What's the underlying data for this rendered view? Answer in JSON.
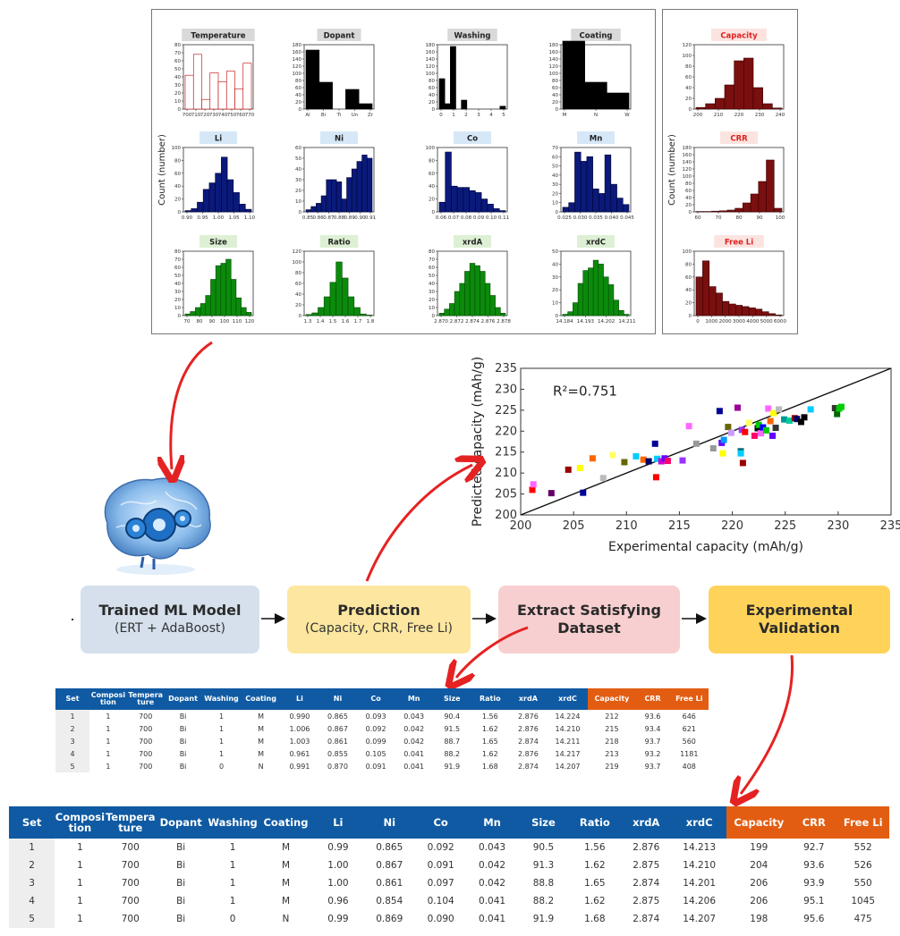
{
  "histograms": {
    "input_panel": [
      {
        "title": "Temperature",
        "label_bg": "#d9d9d9",
        "title_color": "#222222",
        "color": "#ffffff",
        "edge": "#c00000",
        "ymax": 80,
        "yticks": [
          0,
          10,
          20,
          30,
          40,
          50,
          60,
          70,
          80
        ],
        "ticks": [
          "700",
          "710",
          "720",
          "730",
          "740",
          "750",
          "760",
          "770"
        ],
        "values": [
          42,
          68,
          12,
          45,
          34,
          47,
          25,
          57
        ]
      },
      {
        "title": "Dopant",
        "label_bg": "#d9d9d9",
        "title_color": "#222222",
        "color": "#000000",
        "edge": "#000000",
        "ymax": 180,
        "yticks": [
          0,
          20,
          40,
          60,
          80,
          100,
          120,
          140,
          160,
          180
        ],
        "ticks": [
          "Al",
          "Bi",
          "Ti",
          "Un",
          "Zr"
        ],
        "values": [
          165,
          75,
          0,
          55,
          15
        ]
      },
      {
        "title": "Washing",
        "label_bg": "#d9d9d9",
        "title_color": "#222222",
        "color": "#000000",
        "edge": "#000000",
        "ymax": 180,
        "yticks": [
          0,
          20,
          40,
          60,
          80,
          100,
          120,
          140,
          160,
          180
        ],
        "ticks": [
          "0",
          "1",
          "2",
          "3",
          "4",
          "5"
        ],
        "values": [
          85,
          15,
          175,
          0,
          25,
          0,
          0,
          0,
          0,
          0,
          0,
          8
        ]
      },
      {
        "title": "Coating",
        "label_bg": "#d9d9d9",
        "title_color": "#222222",
        "color": "#000000",
        "edge": "#000000",
        "ymax": 180,
        "yticks": [
          0,
          20,
          40,
          60,
          80,
          100,
          120,
          140,
          160,
          180
        ],
        "ticks": [
          "M",
          "N",
          "W"
        ],
        "values": [
          190,
          75,
          45
        ]
      },
      {
        "title": "Li",
        "label_bg": "#d6e8f7",
        "title_color": "#222222",
        "color": "#0a1a7a",
        "edge": "#000033",
        "ymax": 100,
        "yticks": [
          0,
          20,
          40,
          60,
          80,
          100
        ],
        "ticks": [
          "0.90",
          "0.95",
          "1.00",
          "1.05",
          "1.10"
        ],
        "values": [
          2,
          5,
          15,
          35,
          45,
          60,
          85,
          50,
          30,
          12,
          4
        ]
      },
      {
        "title": "Ni",
        "label_bg": "#d6e8f7",
        "title_color": "#222222",
        "color": "#0a1a7a",
        "edge": "#000033",
        "ymax": 60,
        "yticks": [
          0,
          10,
          20,
          30,
          40,
          50,
          60
        ],
        "ticks": [
          "0.85",
          "0.86",
          "0.87",
          "0.88",
          "0.89",
          "0.90",
          "0.91"
        ],
        "values": [
          2,
          5,
          8,
          15,
          30,
          30,
          28,
          12,
          32,
          40,
          47,
          53,
          50
        ]
      },
      {
        "title": "Co",
        "label_bg": "#d6e8f7",
        "title_color": "#222222",
        "color": "#0a1a7a",
        "edge": "#000033",
        "ymax": 100,
        "yticks": [
          0,
          20,
          40,
          60,
          80,
          100
        ],
        "ticks": [
          "0.06",
          "0.07",
          "0.08",
          "0.09",
          "0.10",
          "0.11"
        ],
        "values": [
          15,
          93,
          40,
          38,
          38,
          33,
          30,
          20,
          12,
          5,
          2
        ]
      },
      {
        "title": "Mn",
        "label_bg": "#d6e8f7",
        "title_color": "#222222",
        "color": "#0a1a7a",
        "edge": "#000033",
        "ymax": 70,
        "yticks": [
          0,
          10,
          20,
          30,
          40,
          50,
          60,
          70
        ],
        "ticks": [
          "0.025",
          "0.030",
          "0.035",
          "0.040",
          "0.045"
        ],
        "values": [
          5,
          10,
          65,
          55,
          60,
          25,
          20,
          62,
          30,
          15,
          8
        ]
      },
      {
        "title": "Size",
        "label_bg": "#ddf0d4",
        "title_color": "#222222",
        "color": "#0b8a0b",
        "edge": "#064d06",
        "ymax": 80,
        "yticks": [
          0,
          10,
          20,
          30,
          40,
          50,
          60,
          70,
          80
        ],
        "ticks": [
          "70",
          "80",
          "90",
          "100",
          "110",
          "120"
        ],
        "values": [
          2,
          5,
          10,
          15,
          25,
          45,
          62,
          65,
          70,
          45,
          22,
          10,
          4
        ]
      },
      {
        "title": "Ratio",
        "label_bg": "#ddf0d4",
        "title_color": "#222222",
        "color": "#0b8a0b",
        "edge": "#064d06",
        "ymax": 120,
        "yticks": [
          0,
          20,
          40,
          60,
          80,
          100,
          120
        ],
        "ticks": [
          "1.3",
          "1.4",
          "1.5",
          "1.6",
          "1.7",
          "1.8"
        ],
        "values": [
          2,
          5,
          15,
          35,
          62,
          100,
          70,
          35,
          15,
          3,
          1
        ]
      },
      {
        "title": "xrdA",
        "label_bg": "#ddf0d4",
        "title_color": "#222222",
        "color": "#0b8a0b",
        "edge": "#064d06",
        "ymax": 80,
        "yticks": [
          0,
          10,
          20,
          30,
          40,
          50,
          60,
          70,
          80
        ],
        "ticks": [
          "2.870",
          "2.872",
          "2.874",
          "2.876",
          "2.878"
        ],
        "values": [
          3,
          8,
          15,
          30,
          40,
          55,
          65,
          62,
          55,
          40,
          25,
          10,
          3
        ]
      },
      {
        "title": "xrdC",
        "label_bg": "#ddf0d4",
        "title_color": "#222222",
        "color": "#0b8a0b",
        "edge": "#064d06",
        "ymax": 50,
        "yticks": [
          0,
          10,
          20,
          30,
          40,
          50
        ],
        "ticks": [
          "14.184",
          "14.193",
          "14.202",
          "14.211"
        ],
        "values": [
          1,
          3,
          10,
          25,
          35,
          37,
          43,
          40,
          30,
          24,
          12,
          4,
          1
        ]
      }
    ],
    "output_panel": [
      {
        "title": "Capacity",
        "label_bg": "#fbe4e0",
        "title_color": "#e02020",
        "color": "#7a0f0f",
        "edge": "#3a0000",
        "ymax": 120,
        "yticks": [
          0,
          20,
          40,
          60,
          80,
          100,
          120
        ],
        "ticks": [
          "200",
          "210",
          "220",
          "230",
          "240"
        ],
        "values": [
          3,
          10,
          20,
          45,
          90,
          95,
          40,
          10,
          2
        ]
      },
      {
        "title": "CRR",
        "label_bg": "#fbe4e0",
        "title_color": "#e02020",
        "color": "#7a0f0f",
        "edge": "#3a0000",
        "ymax": 180,
        "yticks": [
          0,
          20,
          40,
          60,
          80,
          100,
          120,
          140,
          160,
          180
        ],
        "ticks": [
          "60",
          "70",
          "80",
          "90",
          "100"
        ],
        "values": [
          1,
          1,
          2,
          3,
          5,
          10,
          25,
          50,
          85,
          145,
          10
        ]
      },
      {
        "title": "Free Li",
        "label_bg": "#fbe4e0",
        "title_color": "#e02020",
        "color": "#7a0f0f",
        "edge": "#3a0000",
        "ymax": 100,
        "yticks": [
          0,
          20,
          40,
          60,
          80,
          100
        ],
        "ticks": [
          "0",
          "1000",
          "2000",
          "3000",
          "4000",
          "5000",
          "6000"
        ],
        "values": [
          60,
          85,
          45,
          35,
          22,
          18,
          16,
          14,
          12,
          10,
          6,
          3,
          1
        ]
      }
    ],
    "ylabel_input": "Count (number)",
    "ylabel_output": "Count (number)"
  },
  "chart_data": {
    "type": "scatter",
    "title": "",
    "xlabel": "Experimental capacity (mAh/g)",
    "ylabel": "Predicted capacity (mAh/g)",
    "xlim": [
      200,
      235
    ],
    "ylim": [
      200,
      235
    ],
    "xticks": [
      200,
      205,
      210,
      215,
      220,
      225,
      230,
      235
    ],
    "yticks": [
      200,
      205,
      210,
      215,
      220,
      225,
      230,
      235
    ],
    "annotation": "R²=0.751",
    "fit_line": [
      [
        200,
        200
      ],
      [
        235,
        235
      ]
    ],
    "points": [
      {
        "x": 201.1,
        "y": 206.0,
        "c": "#ff0000"
      },
      {
        "x": 201.2,
        "y": 207.3,
        "c": "#ff66ff"
      },
      {
        "x": 202.9,
        "y": 205.2,
        "c": "#660066"
      },
      {
        "x": 204.5,
        "y": 210.8,
        "c": "#990000"
      },
      {
        "x": 205.6,
        "y": 211.2,
        "c": "#ffff00"
      },
      {
        "x": 205.9,
        "y": 205.3,
        "c": "#000099"
      },
      {
        "x": 206.8,
        "y": 213.5,
        "c": "#ff6600"
      },
      {
        "x": 207.8,
        "y": 208.8,
        "c": "#bbbbbb"
      },
      {
        "x": 208.7,
        "y": 214.3,
        "c": "#ffff66"
      },
      {
        "x": 209.8,
        "y": 212.6,
        "c": "#666600"
      },
      {
        "x": 210.9,
        "y": 214.0,
        "c": "#00ccff"
      },
      {
        "x": 211.6,
        "y": 213.2,
        "c": "#ff6600"
      },
      {
        "x": 212.1,
        "y": 212.8,
        "c": "#000066"
      },
      {
        "x": 212.7,
        "y": 217.0,
        "c": "#000099"
      },
      {
        "x": 212.8,
        "y": 209.0,
        "c": "#ff0000"
      },
      {
        "x": 212.9,
        "y": 213.4,
        "c": "#00ccff"
      },
      {
        "x": 213.3,
        "y": 212.8,
        "c": "#cc00cc"
      },
      {
        "x": 213.6,
        "y": 213.5,
        "c": "#6600ff"
      },
      {
        "x": 213.9,
        "y": 212.9,
        "c": "#ff0066"
      },
      {
        "x": 215.3,
        "y": 213.0,
        "c": "#9933ff"
      },
      {
        "x": 215.9,
        "y": 221.2,
        "c": "#ff66ff"
      },
      {
        "x": 216.6,
        "y": 217.0,
        "c": "#999999"
      },
      {
        "x": 218.2,
        "y": 215.9,
        "c": "#999999"
      },
      {
        "x": 218.8,
        "y": 224.8,
        "c": "#000099"
      },
      {
        "x": 219.0,
        "y": 217.2,
        "c": "#6600ff"
      },
      {
        "x": 219.1,
        "y": 214.7,
        "c": "#ffff00"
      },
      {
        "x": 219.2,
        "y": 217.9,
        "c": "#0099ff"
      },
      {
        "x": 219.6,
        "y": 221.0,
        "c": "#666600"
      },
      {
        "x": 219.9,
        "y": 219.6,
        "c": "#cc99ff"
      },
      {
        "x": 220.5,
        "y": 225.6,
        "c": "#990099"
      },
      {
        "x": 220.8,
        "y": 215.2,
        "c": "#006666"
      },
      {
        "x": 220.8,
        "y": 214.7,
        "c": "#00ccff"
      },
      {
        "x": 220.9,
        "y": 220.3,
        "c": "#9933ff"
      },
      {
        "x": 221.0,
        "y": 212.4,
        "c": "#990000"
      },
      {
        "x": 221.2,
        "y": 219.8,
        "c": "#ff0000"
      },
      {
        "x": 221.6,
        "y": 222.0,
        "c": "#ffff66"
      },
      {
        "x": 222.1,
        "y": 218.9,
        "c": "#ff0066"
      },
      {
        "x": 222.4,
        "y": 220.7,
        "c": "#000000"
      },
      {
        "x": 222.5,
        "y": 221.5,
        "c": "#00cc00"
      },
      {
        "x": 222.7,
        "y": 219.5,
        "c": "#ff66ff"
      },
      {
        "x": 222.9,
        "y": 220.9,
        "c": "#0000ff"
      },
      {
        "x": 223.2,
        "y": 220.2,
        "c": "#00cc00"
      },
      {
        "x": 223.4,
        "y": 225.4,
        "c": "#ff66ff"
      },
      {
        "x": 223.6,
        "y": 222.4,
        "c": "#ff6600"
      },
      {
        "x": 223.8,
        "y": 218.9,
        "c": "#6600ff"
      },
      {
        "x": 223.9,
        "y": 224.3,
        "c": "#ffff00"
      },
      {
        "x": 224.1,
        "y": 220.8,
        "c": "#333333"
      },
      {
        "x": 224.4,
        "y": 225.2,
        "c": "#bbbbbb"
      },
      {
        "x": 224.9,
        "y": 222.8,
        "c": "#009999"
      },
      {
        "x": 225.4,
        "y": 222.5,
        "c": "#00cc99"
      },
      {
        "x": 225.9,
        "y": 223.1,
        "c": "#990000"
      },
      {
        "x": 226.1,
        "y": 222.9,
        "c": "#000066"
      },
      {
        "x": 226.5,
        "y": 222.2,
        "c": "#000000"
      },
      {
        "x": 226.8,
        "y": 223.3,
        "c": "#000000"
      },
      {
        "x": 227.4,
        "y": 225.2,
        "c": "#00ccff"
      },
      {
        "x": 229.7,
        "y": 225.5,
        "c": "#333333"
      },
      {
        "x": 229.9,
        "y": 224.1,
        "c": "#006600"
      },
      {
        "x": 230.1,
        "y": 225.4,
        "c": "#00cc00"
      },
      {
        "x": 230.3,
        "y": 225.8,
        "c": "#00cc00"
      }
    ]
  },
  "flow": {
    "stage1": {
      "line1": "Trained ML Model",
      "line2": "(ERT + AdaBoost)",
      "color": "#d5e0ec"
    },
    "stage2": {
      "line1": "Prediction",
      "line2": "(Capacity, CRR, Free Li)",
      "color": "#fde7a0"
    },
    "stage3": {
      "line1": "Extract Satisfying",
      "line2": "Dataset",
      "color": "#f8cfd0"
    },
    "stage4": {
      "line1": "Experimental",
      "line2": "Validation",
      "color": "#ffd35a"
    },
    "arrow_color": "#e52222"
  },
  "tables": {
    "header_blue": "#0f5aa3",
    "header_orange": "#e25d12",
    "predicted": {
      "columns": [
        "Set",
        "Composi tion",
        "Tempera ture",
        "Dopant",
        "Washing",
        "Coating",
        "Li",
        "Ni",
        "Co",
        "Mn",
        "Size",
        "Ratio",
        "xrdA",
        "xrdC",
        "Capacity",
        "CRR",
        "Free Li"
      ],
      "rows": [
        [
          "1",
          "1",
          "700",
          "Bi",
          "1",
          "M",
          "0.990",
          "0.865",
          "0.093",
          "0.043",
          "90.4",
          "1.56",
          "2.876",
          "14.224",
          "212",
          "93.6",
          "646"
        ],
        [
          "2",
          "1",
          "700",
          "Bi",
          "1",
          "M",
          "1.006",
          "0.867",
          "0.092",
          "0.042",
          "91.5",
          "1.62",
          "2.876",
          "14.210",
          "215",
          "93.4",
          "621"
        ],
        [
          "3",
          "1",
          "700",
          "Bi",
          "1",
          "M",
          "1.003",
          "0.861",
          "0.099",
          "0.042",
          "88.7",
          "1.65",
          "2.874",
          "14.211",
          "218",
          "93.7",
          "560"
        ],
        [
          "4",
          "1",
          "700",
          "Bi",
          "1",
          "M",
          "0.961",
          "0.855",
          "0.105",
          "0.041",
          "88.2",
          "1.62",
          "2.876",
          "14.217",
          "213",
          "93.2",
          "1181"
        ],
        [
          "5",
          "1",
          "700",
          "Bi",
          "0",
          "N",
          "0.991",
          "0.870",
          "0.091",
          "0.041",
          "91.9",
          "1.68",
          "2.874",
          "14.207",
          "219",
          "93.7",
          "408"
        ]
      ]
    },
    "experimental": {
      "columns": [
        "Set",
        "Composi tion",
        "Tempera ture",
        "Dopant",
        "Washing",
        "Coating",
        "Li",
        "Ni",
        "Co",
        "Mn",
        "Size",
        "Ratio",
        "xrdA",
        "xrdC",
        "Capacity",
        "CRR",
        "Free Li"
      ],
      "rows": [
        [
          "1",
          "1",
          "700",
          "Bi",
          "1",
          "M",
          "0.99",
          "0.865",
          "0.092",
          "0.043",
          "90.5",
          "1.56",
          "2.876",
          "14.213",
          "199",
          "92.7",
          "552"
        ],
        [
          "2",
          "1",
          "700",
          "Bi",
          "1",
          "M",
          "1.00",
          "0.867",
          "0.091",
          "0.042",
          "91.3",
          "1.62",
          "2.875",
          "14.210",
          "204",
          "93.6",
          "526"
        ],
        [
          "3",
          "1",
          "700",
          "Bi",
          "1",
          "M",
          "1.00",
          "0.861",
          "0.097",
          "0.042",
          "88.8",
          "1.65",
          "2.874",
          "14.201",
          "206",
          "93.9",
          "550"
        ],
        [
          "4",
          "1",
          "700",
          "Bi",
          "1",
          "M",
          "0.96",
          "0.854",
          "0.104",
          "0.041",
          "88.2",
          "1.62",
          "2.875",
          "14.206",
          "206",
          "95.1",
          "1045"
        ],
        [
          "5",
          "1",
          "700",
          "Bi",
          "0",
          "N",
          "0.99",
          "0.869",
          "0.090",
          "0.041",
          "91.9",
          "1.68",
          "2.874",
          "14.207",
          "198",
          "95.6",
          "475"
        ]
      ]
    }
  }
}
